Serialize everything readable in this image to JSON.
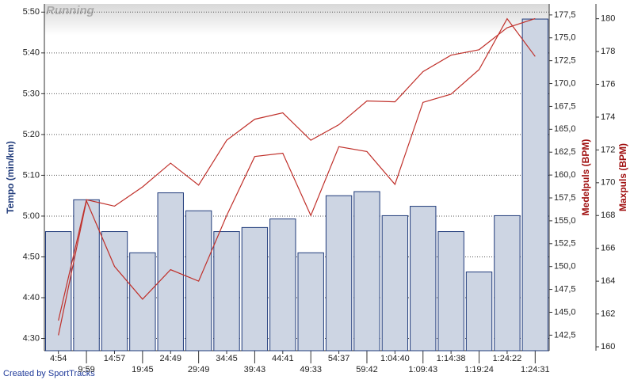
{
  "chart_data": {
    "type": "bar",
    "title": "Running",
    "credit": "Created by SportTracks",
    "ylabel": "Tempo (min/km)",
    "y2label": "Medelpuls (BPM)",
    "y3label": "Maxpuls (BPM)",
    "categories": [
      "4:54",
      "9:59",
      "14:57",
      "19:45",
      "24:49",
      "29:49",
      "34:45",
      "39:43",
      "44:41",
      "49:33",
      "54:37",
      "59:42",
      "1:04:40",
      "1:09:43",
      "1:14:38",
      "1:19:24",
      "1:24:22",
      "1:24:31"
    ],
    "series": [
      {
        "type": "bar",
        "axis": "y",
        "color": "#cdd5e3",
        "edge": "#1f3a7a",
        "values": [
          296.2,
          304,
          296.2,
          291,
          305.7,
          301.3,
          296.2,
          297.2,
          299.3,
          291,
          305,
          306,
          300.1,
          302.4,
          296.2,
          286.3,
          300.1,
          348.3
        ]
      },
      {
        "type": "line",
        "axis": "y2",
        "color": "#c0302a",
        "values": [
          144.1,
          157.3,
          156.6,
          158.7,
          161.3,
          158.9,
          163.8,
          166.1,
          166.8,
          163.8,
          165.5,
          168.1,
          168.0,
          171.3,
          173.1,
          173.7,
          176.1,
          177.1
        ]
      },
      {
        "type": "line",
        "axis": "y3",
        "color": "#c0302a",
        "values": [
          160.7,
          168.9,
          164.9,
          162.9,
          164.7,
          164.0,
          168.0,
          171.6,
          171.8,
          168.0,
          172.2,
          171.9,
          169.9,
          174.9,
          175.4,
          176.9,
          180.0,
          177.7
        ]
      }
    ],
    "ylim": [
      267,
      352
    ],
    "yticks": [
      {
        "value": 270,
        "label": "4:30"
      },
      {
        "value": 280,
        "label": "4:40"
      },
      {
        "value": 290,
        "label": "4:50"
      },
      {
        "value": 300,
        "label": "5:00"
      },
      {
        "value": 310,
        "label": "5:10"
      },
      {
        "value": 320,
        "label": "5:20"
      },
      {
        "value": 330,
        "label": "5:30"
      },
      {
        "value": 340,
        "label": "5:40"
      },
      {
        "value": 350,
        "label": "5:50"
      }
    ],
    "y2lim": [
      140.8,
      178.7
    ],
    "y2ticks": [
      {
        "value": 142.5,
        "label": "142,5"
      },
      {
        "value": 145,
        "label": "145,0"
      },
      {
        "value": 147.5,
        "label": "147,5"
      },
      {
        "value": 150,
        "label": "150,0"
      },
      {
        "value": 152.5,
        "label": "152,5"
      },
      {
        "value": 155,
        "label": "155,0"
      },
      {
        "value": 157.5,
        "label": "157,5"
      },
      {
        "value": 160,
        "label": "160,0"
      },
      {
        "value": 162.5,
        "label": "162,5"
      },
      {
        "value": 165,
        "label": "165,0"
      },
      {
        "value": 167.5,
        "label": "167,5"
      },
      {
        "value": 170,
        "label": "170,0"
      },
      {
        "value": 172.5,
        "label": "172,5"
      },
      {
        "value": 175,
        "label": "175,0"
      },
      {
        "value": 177.5,
        "label": "177,5"
      }
    ],
    "y3lim": [
      159.76,
      180.9
    ],
    "y3ticks": [
      160,
      162,
      164,
      166,
      168,
      170,
      172,
      174,
      176,
      178,
      180
    ],
    "grid": true
  }
}
